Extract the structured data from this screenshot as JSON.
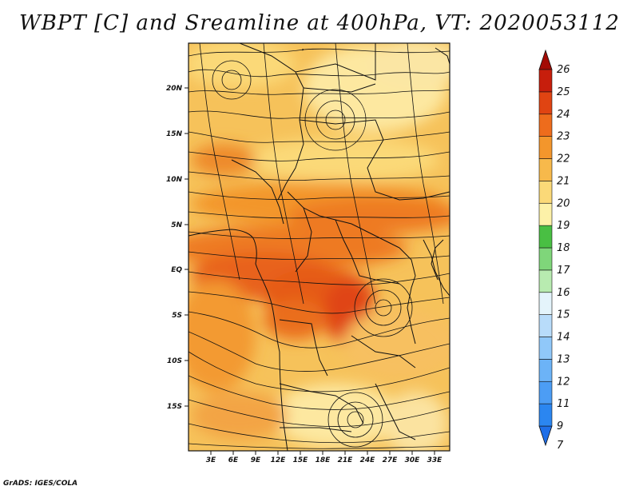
{
  "title": "WBPT [C] and Sreamline at 400hPa, VT: 2020053112",
  "footer": "GrADS: IGES/COLA",
  "map": {
    "lon_range": [
      0,
      35
    ],
    "lat_range": [
      -20,
      25
    ],
    "lat_ticks": [
      "20N",
      "15N",
      "10N",
      "5N",
      "EQ",
      "5S",
      "10S",
      "15S"
    ],
    "lon_ticks": [
      "3E",
      "6E",
      "9E",
      "12E",
      "15E",
      "18E",
      "21E",
      "24E",
      "27E",
      "30E",
      "33E"
    ]
  },
  "colorbar": {
    "levels": [
      "7",
      "9",
      "11",
      "12",
      "13",
      "14",
      "15",
      "16",
      "17",
      "18",
      "19",
      "20",
      "21",
      "22",
      "23",
      "24",
      "25",
      "26"
    ],
    "colors": [
      "#1f6fe8",
      "#2b86f0",
      "#4c9df5",
      "#6cb3f7",
      "#90c8f9",
      "#b8dcfa",
      "#e4f4fb",
      "#b8ebb0",
      "#7fd67a",
      "#49bf43",
      "#fdf1a8",
      "#fbd978",
      "#f7b94b",
      "#f3962c",
      "#ee6c1c",
      "#e04412",
      "#c71e0c",
      "#a30b05"
    ]
  }
}
